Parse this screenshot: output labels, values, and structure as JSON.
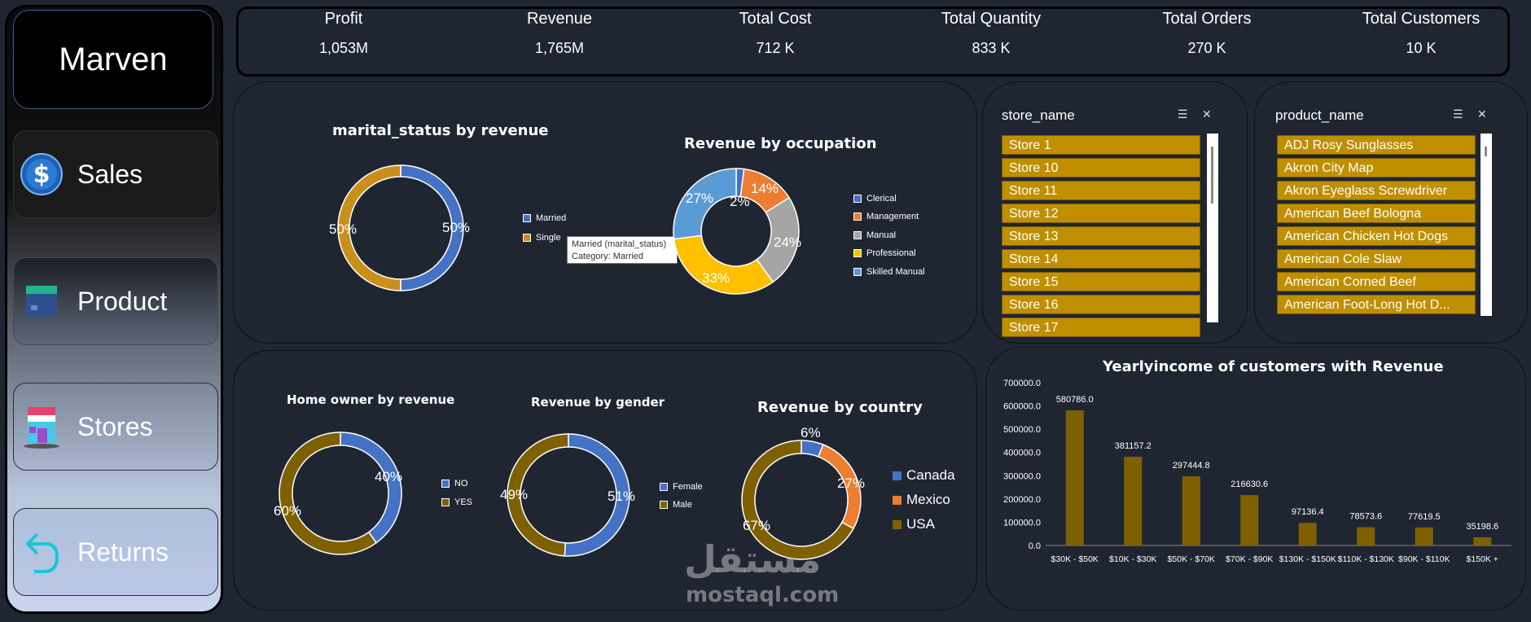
{
  "sidebar": {
    "brand": "Marven",
    "nav": [
      {
        "label": "Sales"
      },
      {
        "label": "Product"
      },
      {
        "label": "Stores"
      },
      {
        "label": "Returns"
      }
    ]
  },
  "kpis": [
    {
      "label": "Profit",
      "value": "1,053M"
    },
    {
      "label": "Revenue",
      "value": "1,765M"
    },
    {
      "label": "Total Cost",
      "value": "712 K"
    },
    {
      "label": "Total Quantity",
      "value": "833 K"
    },
    {
      "label": "Total Orders",
      "value": "270 K"
    },
    {
      "label": "Total Customers",
      "value": "10 K"
    }
  ],
  "marital": {
    "title": "marital_status by revenue",
    "legend": [
      "Married",
      "Single"
    ],
    "labels": [
      "50%",
      "50%"
    ],
    "tooltip": {
      "line1": "Married (marital_status)",
      "line2": "Category: Married"
    }
  },
  "occupation": {
    "title": "Revenue by occupation",
    "legend": [
      "Clerical",
      "Management",
      "Manual",
      "Professional",
      "Skilled Manual"
    ],
    "labels": [
      "2%",
      "14%",
      "24%",
      "33%",
      "27%"
    ]
  },
  "homeowner": {
    "title": "Home owner by revenue",
    "legend": [
      "NO",
      "YES"
    ],
    "labels": [
      "40%",
      "60%"
    ]
  },
  "gender": {
    "title": "Revenue by   gender",
    "legend": [
      "Female",
      "Male"
    ],
    "labels": [
      "51%",
      "49%"
    ]
  },
  "country": {
    "title": "Revenue by  country",
    "legend": [
      "Canada",
      "Mexico",
      "USA"
    ],
    "labels": [
      "6%",
      "27%",
      "67%"
    ]
  },
  "store_slicer": {
    "title": "store_name",
    "items": [
      "Store 1",
      "Store 10",
      "Store 11",
      "Store 12",
      "Store 13",
      "Store 14",
      "Store 15",
      "Store 16",
      "Store 17"
    ]
  },
  "product_slicer": {
    "title": "product_name",
    "items": [
      "ADJ Rosy Sunglasses",
      "Akron City Map",
      "Akron Eyeglass Screwdriver",
      "American Beef Bologna",
      "American Chicken Hot Dogs",
      "American Cole Slaw",
      "American Corned Beef",
      "American Foot-Long Hot D..."
    ]
  },
  "watermark": {
    "arabic": "مستقل",
    "latin": "mostaql.com"
  },
  "colors": {
    "blue": "#4472c4",
    "gold": "#c8901a",
    "light_blue": "#5b9bd5",
    "orange": "#ed7d31",
    "grey": "#a5a5a5",
    "yellow": "#ffc000",
    "olive": "#7f6000",
    "slicer": "#bf8f00"
  },
  "chart_data": [
    {
      "type": "pie",
      "title": "marital_status by revenue",
      "categories": [
        "Married",
        "Single"
      ],
      "values": [
        50,
        50
      ]
    },
    {
      "type": "pie",
      "title": "Revenue by occupation",
      "categories": [
        "Clerical",
        "Management",
        "Manual",
        "Professional",
        "Skilled Manual"
      ],
      "values": [
        2,
        14,
        24,
        33,
        27
      ]
    },
    {
      "type": "pie",
      "title": "Home owner by revenue",
      "categories": [
        "NO",
        "YES"
      ],
      "values": [
        40,
        60
      ]
    },
    {
      "type": "pie",
      "title": "Revenue by   gender",
      "categories": [
        "Female",
        "Male"
      ],
      "values": [
        51,
        49
      ]
    },
    {
      "type": "pie",
      "title": "Revenue by  country",
      "categories": [
        "Canada",
        "Mexico",
        "USA"
      ],
      "values": [
        6,
        27,
        67
      ]
    },
    {
      "type": "bar",
      "title": "Yearlyincome of customers with Revenue",
      "categories": [
        "$30K - $50K",
        "$10K - $30K",
        "$50K - $70K",
        "$70K - $90K",
        "$130K - $150K",
        "$110K - $130K",
        "$90K - $110K",
        "$150K +"
      ],
      "values": [
        580786.0,
        381157.2,
        297444.8,
        216630.6,
        97136.4,
        78573.6,
        77619.5,
        35198.6
      ],
      "value_labels": [
        "580786.0",
        "381157.2",
        "297444.8",
        "216630.6",
        "97136.4",
        "78573.6",
        "77619.5",
        "35198.6"
      ],
      "yticks": [
        "0.0",
        "100000.0",
        "200000.0",
        "300000.0",
        "400000.0",
        "500000.0",
        "600000.0",
        "700000.0"
      ],
      "ylim": [
        0,
        700000
      ],
      "grid": false,
      "bar_color": "#7f6000"
    }
  ]
}
